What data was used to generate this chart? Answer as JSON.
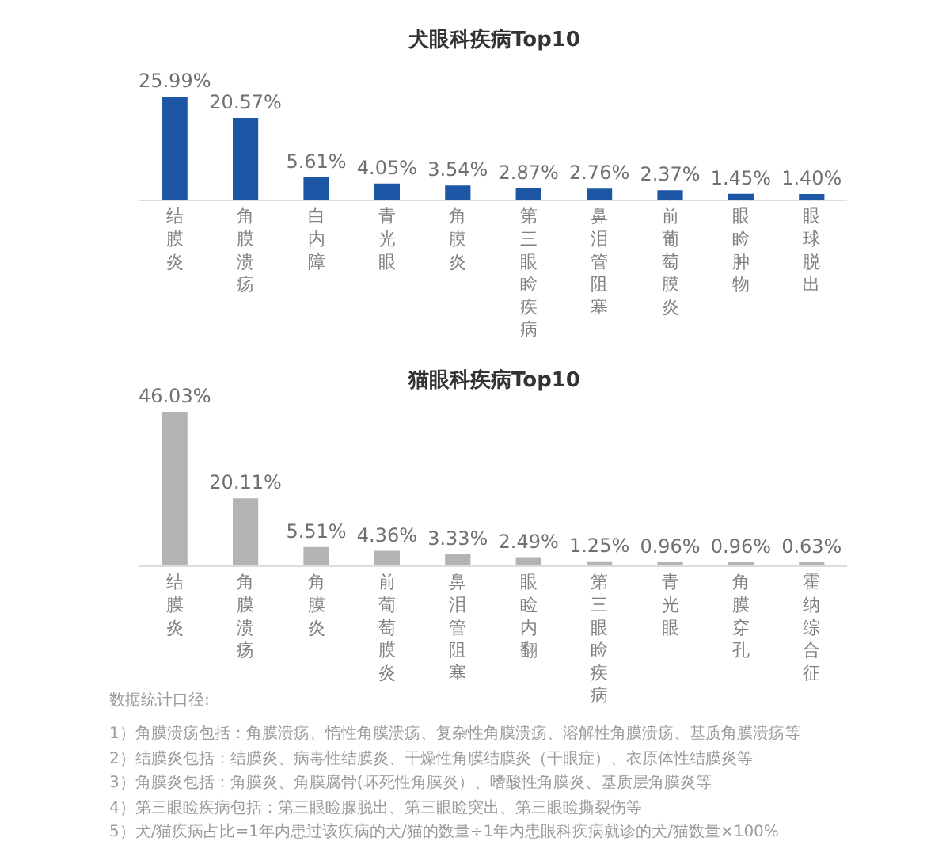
{
  "chart_data": [
    {
      "type": "bar",
      "title": "犬眼科疾病Top10",
      "tick_labels": "x",
      "color": "#1d56a5",
      "categories": [
        "结膜炎",
        "角膜溃疡",
        "白内障",
        "青光眼",
        "角膜炎",
        "第三眼睑疾病",
        "鼻泪管阻塞",
        "前葡萄膜炎",
        "眼睑肿物",
        "眼球脱出"
      ],
      "values": [
        25.99,
        20.57,
        5.61,
        4.05,
        3.54,
        2.87,
        2.76,
        2.37,
        1.45,
        1.4
      ],
      "value_labels": [
        "25.99%",
        "20.57%",
        "5.61%",
        "4.05%",
        "3.54%",
        "2.87%",
        "2.76%",
        "2.37%",
        "1.45%",
        "1.40%"
      ]
    },
    {
      "type": "bar",
      "title": "猫眼科疾病Top10",
      "tick_labels": "x",
      "color": "#b3b3b3",
      "categories": [
        "结膜炎",
        "角膜溃疡",
        "角膜炎",
        "前葡萄膜炎",
        "鼻泪管阻塞",
        "眼睑内翻",
        "第三眼睑疾病",
        "青光眼",
        "角膜穿孔",
        "霍纳综合征"
      ],
      "values": [
        46.03,
        20.11,
        5.51,
        4.36,
        3.33,
        2.49,
        1.25,
        0.96,
        0.96,
        0.63
      ],
      "value_labels": [
        "46.03%",
        "20.11%",
        "5.51%",
        "4.36%",
        "3.33%",
        "2.49%",
        "1.25%",
        "0.96%",
        "0.96%",
        "0.63%"
      ],
      "annotations": [
        "数据统计口径:",
        "1）角膜溃疡包括：角膜溃疡、惰性角膜溃疡、复杂性角膜溃疡、溶解性角膜溃疡、基质角膜溃疡等",
        "2）结膜炎包括：结膜炎、病毒性结膜炎、干燥性角膜结膜炎（干眼症）、衣原体性结膜炎等",
        "3）角膜炎包括：角膜炎、角膜腐骨(坏死性角膜炎）、嗜酸性角膜炎、基质层角膜炎等",
        "4）第三眼睑疾病包括：第三眼睑腺脱出、第三眼睑突出、第三眼睑撕裂伤等",
        "5）犬/猫疾病占比=1年内患过该疾病的犬/猫的数量÷1年内患眼科疾病就诊的犬/猫数量×100%"
      ]
    }
  ]
}
